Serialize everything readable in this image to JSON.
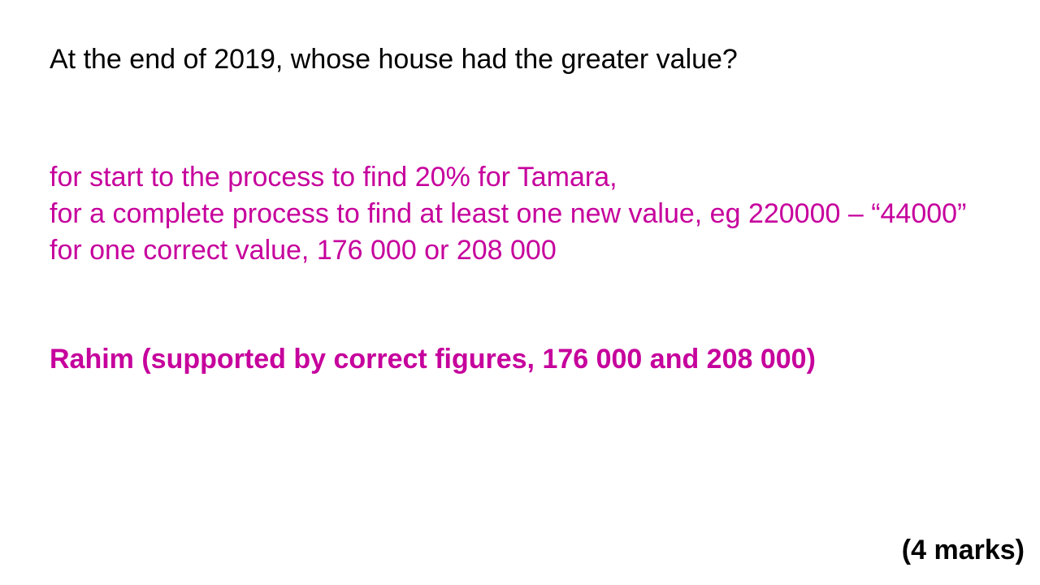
{
  "slide": {
    "question": "At the end of 2019, whose house had the greater value?",
    "mark_scheme": [
      "for start to the process to find 20% for Tamara,",
      "for a complete process to find at least one new value,  eg 220000 – “44000”",
      "for one correct value, 176 000 or 208 000"
    ],
    "answer": "Rahim (supported by correct figures, 176 000 and 208 000)",
    "marks": "(4 marks)"
  },
  "colors": {
    "question_text": "#000000",
    "mark_scheme_text": "#c6009c",
    "background": "#ffffff"
  }
}
